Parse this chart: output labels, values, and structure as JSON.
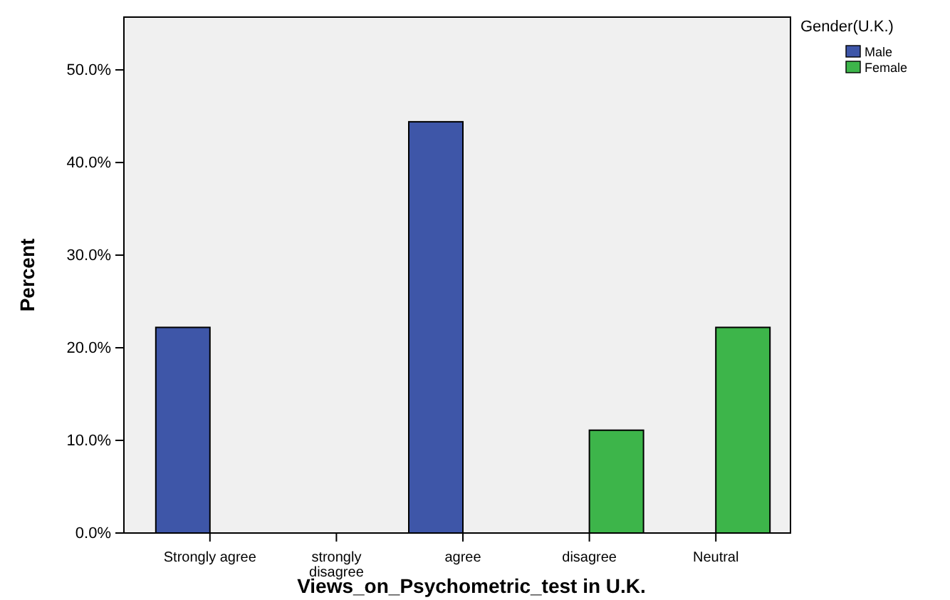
{
  "chart_data": {
    "type": "bar",
    "xlabel": "Views_on_Psychometric_test in U.K.",
    "ylabel": "Percent",
    "legend_title": "Gender(U.K.)",
    "categories": [
      "Strongly agree",
      "strongly\ndisagree",
      "agree",
      "disagree",
      "Neutral"
    ],
    "series": [
      {
        "name": "Male",
        "color": "#3e56a8",
        "values": [
          22.2,
          null,
          44.4,
          null,
          null
        ]
      },
      {
        "name": "Female",
        "color": "#3db54a",
        "values": [
          null,
          null,
          null,
          11.1,
          22.2
        ]
      }
    ],
    "ylim": [
      0,
      55.7
    ],
    "yticks": [
      {
        "value": 0,
        "label": "0.0%"
      },
      {
        "value": 10,
        "label": "10.0%"
      },
      {
        "value": 20,
        "label": "20.0%"
      },
      {
        "value": 30,
        "label": "30.0%"
      },
      {
        "value": 40,
        "label": "40.0%"
      },
      {
        "value": 50,
        "label": "50.0%"
      }
    ],
    "grid": false,
    "legend": "top right"
  }
}
